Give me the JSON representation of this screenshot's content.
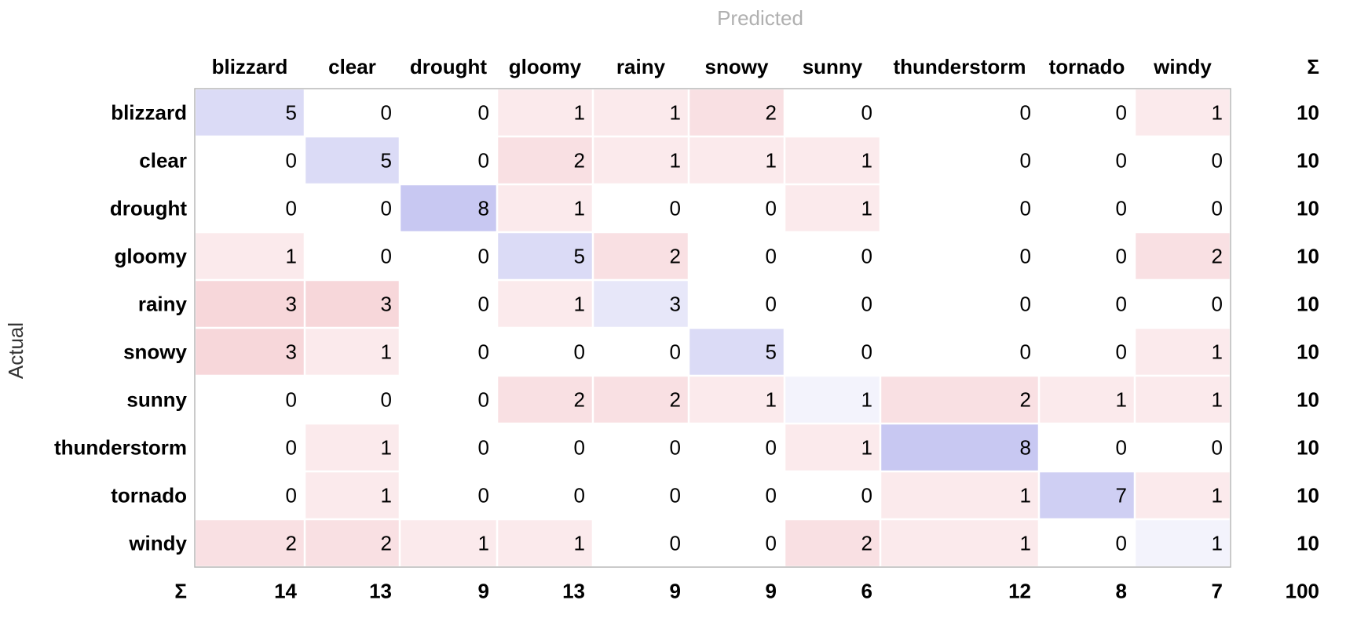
{
  "chart_data": {
    "type": "heatmap",
    "title": "",
    "xlabel": "Predicted",
    "ylabel": "Actual",
    "sum_symbol": "Σ",
    "labels": [
      "blizzard",
      "clear",
      "drought",
      "gloomy",
      "rainy",
      "snowy",
      "sunny",
      "thunderstorm",
      "tornado",
      "windy"
    ],
    "matrix": [
      [
        5,
        0,
        0,
        1,
        1,
        2,
        0,
        0,
        0,
        1
      ],
      [
        0,
        5,
        0,
        2,
        1,
        1,
        1,
        0,
        0,
        0
      ],
      [
        0,
        0,
        8,
        1,
        0,
        0,
        1,
        0,
        0,
        0
      ],
      [
        1,
        0,
        0,
        5,
        2,
        0,
        0,
        0,
        0,
        2
      ],
      [
        3,
        3,
        0,
        1,
        3,
        0,
        0,
        0,
        0,
        0
      ],
      [
        3,
        1,
        0,
        0,
        0,
        5,
        0,
        0,
        0,
        1
      ],
      [
        0,
        0,
        0,
        2,
        2,
        1,
        1,
        2,
        1,
        1
      ],
      [
        0,
        1,
        0,
        0,
        0,
        0,
        1,
        8,
        0,
        0
      ],
      [
        0,
        1,
        0,
        0,
        0,
        0,
        0,
        1,
        7,
        1
      ],
      [
        2,
        2,
        1,
        1,
        0,
        0,
        2,
        1,
        0,
        1
      ]
    ],
    "row_sums": [
      10,
      10,
      10,
      10,
      10,
      10,
      10,
      10,
      10,
      10
    ],
    "col_sums": [
      14,
      13,
      9,
      13,
      9,
      9,
      6,
      12,
      8,
      7
    ],
    "total": 100,
    "colors": {
      "correct": "#6e6edc",
      "error": "#dc4a5a",
      "axis_title": "#b0b0b0",
      "grid_border": "#b8b8b8"
    }
  }
}
